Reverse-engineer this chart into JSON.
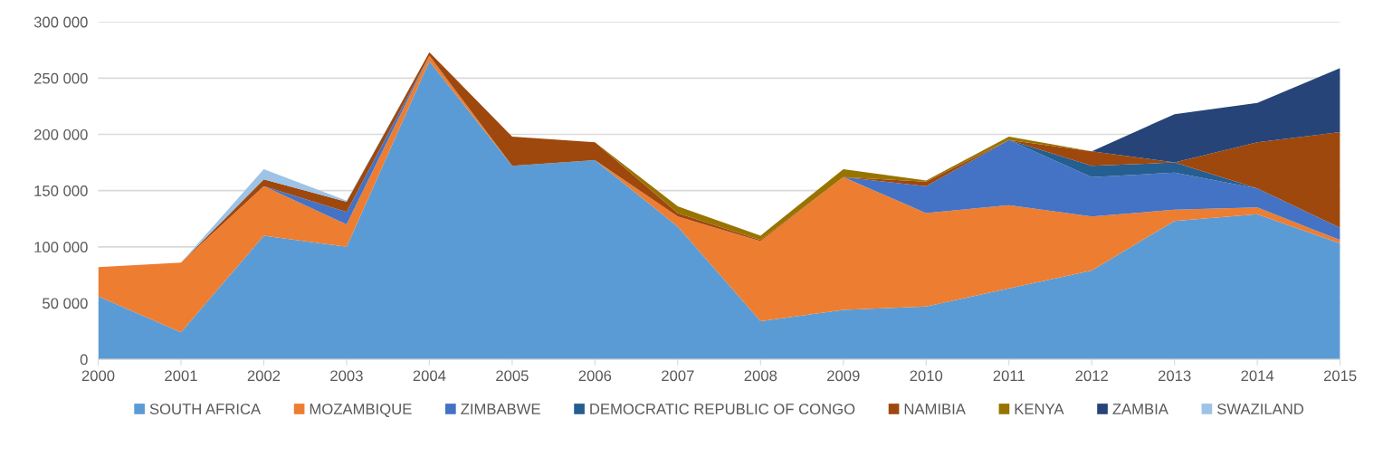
{
  "chart_data": {
    "type": "area",
    "stacked": true,
    "x": [
      2000,
      2001,
      2002,
      2003,
      2004,
      2005,
      2006,
      2007,
      2008,
      2009,
      2010,
      2011,
      2012,
      2013,
      2014,
      2015
    ],
    "series": [
      {
        "name": "SOUTH AFRICA",
        "color": "#5b9bd5",
        "values": [
          56000,
          24000,
          110000,
          100000,
          265000,
          172000,
          177000,
          118000,
          34000,
          44000,
          47000,
          63000,
          79000,
          123000,
          129000,
          103000
        ]
      },
      {
        "name": "MOZAMBIQUE",
        "color": "#ed7d31",
        "values": [
          26000,
          62000,
          44000,
          20000,
          5000,
          0,
          0,
          9000,
          71000,
          118000,
          83000,
          74000,
          48000,
          10000,
          6000,
          3000
        ]
      },
      {
        "name": "ZIMBABWE",
        "color": "#4472c4",
        "values": [
          null,
          null,
          0,
          11000,
          0,
          0,
          0,
          0,
          0,
          0,
          24000,
          58000,
          35000,
          33000,
          17000,
          11000
        ]
      },
      {
        "name": "DEMOCRATIC REPUBLIC OF CONGO",
        "color": "#255e91",
        "values": [
          null,
          null,
          null,
          null,
          null,
          null,
          null,
          null,
          null,
          null,
          null,
          0,
          10000,
          9000,
          0,
          null
        ]
      },
      {
        "name": "NAMIBIA",
        "color": "#9e480e",
        "values": [
          null,
          0,
          6000,
          9000,
          3000,
          26000,
          16000,
          3000,
          1000,
          0,
          4000,
          0,
          13000,
          0,
          41000,
          85000
        ]
      },
      {
        "name": "KENYA",
        "color": "#997300",
        "values": [
          null,
          null,
          null,
          null,
          null,
          null,
          0,
          6000,
          4000,
          7000,
          1000,
          3000,
          0,
          null,
          null,
          null
        ]
      },
      {
        "name": "ZAMBIA",
        "color": "#264478",
        "values": [
          null,
          null,
          null,
          null,
          null,
          null,
          null,
          null,
          null,
          null,
          null,
          null,
          0,
          43000,
          35000,
          57000
        ]
      },
      {
        "name": "SWAZILAND",
        "color": "#9dc3e6",
        "values": [
          null,
          0,
          9000,
          1000,
          0,
          null,
          null,
          null,
          null,
          null,
          null,
          null,
          null,
          null,
          null,
          null
        ]
      }
    ],
    "xlim": [
      2000,
      2015
    ],
    "xticks": [
      2000,
      2001,
      2002,
      2003,
      2004,
      2005,
      2006,
      2007,
      2008,
      2009,
      2010,
      2011,
      2012,
      2013,
      2014,
      2015
    ],
    "ylim": [
      0,
      300000
    ],
    "yticks": [
      0,
      {
        "value": 50000,
        "label": "50 000"
      },
      {
        "value": 100000,
        "label": "100 000"
      },
      {
        "value": 150000,
        "label": "150 000"
      },
      {
        "value": 200000,
        "label": "200 000"
      },
      {
        "value": 250000,
        "label": "250 000"
      },
      {
        "value": 300000,
        "label": "300 000"
      }
    ],
    "grid": "y",
    "legend": "bottom"
  }
}
